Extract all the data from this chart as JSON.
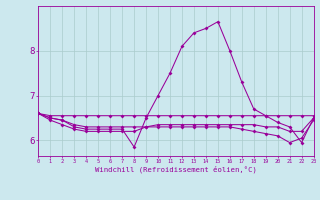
{
  "xlabel": "Windchill (Refroidissement éolien,°C)",
  "bg_color": "#cce8ee",
  "line_color": "#990099",
  "grid_color": "#aacccc",
  "x_values": [
    0,
    1,
    2,
    3,
    4,
    5,
    6,
    7,
    8,
    9,
    10,
    11,
    12,
    13,
    14,
    15,
    16,
    17,
    18,
    19,
    20,
    21,
    22,
    23
  ],
  "line_main": [
    6.6,
    6.5,
    6.45,
    6.3,
    6.25,
    6.25,
    6.25,
    6.25,
    5.85,
    6.5,
    7.0,
    7.5,
    8.1,
    8.4,
    8.5,
    8.65,
    8.0,
    7.3,
    6.7,
    6.55,
    6.4,
    6.3,
    5.95,
    6.5
  ],
  "line_flat1": [
    6.6,
    6.55,
    6.55,
    6.55,
    6.55,
    6.55,
    6.55,
    6.55,
    6.55,
    6.55,
    6.55,
    6.55,
    6.55,
    6.55,
    6.55,
    6.55,
    6.55,
    6.55,
    6.55,
    6.55,
    6.55,
    6.55,
    6.55,
    6.55
  ],
  "line_flat2": [
    6.6,
    6.5,
    6.45,
    6.35,
    6.3,
    6.3,
    6.3,
    6.3,
    6.3,
    6.3,
    6.35,
    6.35,
    6.35,
    6.35,
    6.35,
    6.35,
    6.35,
    6.35,
    6.35,
    6.3,
    6.3,
    6.2,
    6.2,
    6.5
  ],
  "line_flat3": [
    6.6,
    6.45,
    6.35,
    6.25,
    6.2,
    6.2,
    6.2,
    6.2,
    6.2,
    6.3,
    6.3,
    6.3,
    6.3,
    6.3,
    6.3,
    6.3,
    6.3,
    6.25,
    6.2,
    6.15,
    6.1,
    5.95,
    6.05,
    6.45
  ],
  "ylim": [
    5.65,
    9.0
  ],
  "yticks": [
    6,
    7,
    8
  ],
  "xlim": [
    0,
    23
  ]
}
